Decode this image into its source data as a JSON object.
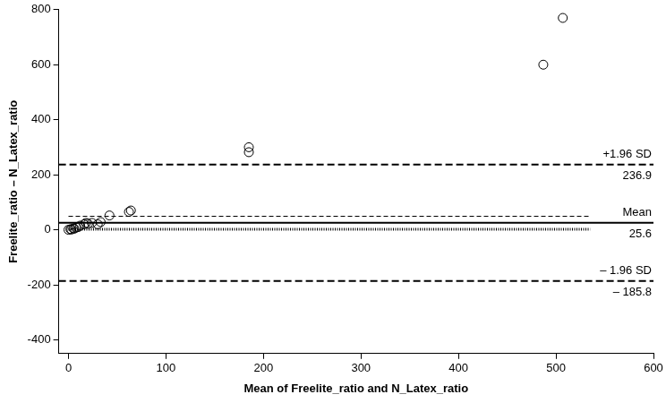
{
  "chart_data": {
    "type": "scatter",
    "x_label": "Mean of Freelite_ratio and N_Latex_ratio",
    "y_label": "Freelite_ratio – N_Latex_ratio",
    "x": [
      0,
      2,
      3,
      5,
      6,
      8,
      10,
      12,
      16,
      18,
      20,
      24,
      30,
      33,
      42,
      62,
      64,
      185,
      185,
      487,
      507
    ],
    "values": [
      0,
      2,
      1,
      5,
      4,
      8,
      10,
      15,
      20,
      25,
      22,
      25,
      20,
      28,
      52,
      65,
      70,
      300,
      282,
      600,
      770
    ],
    "color": "#000000",
    "marker": "open_circle",
    "xlim": [
      -10,
      600
    ],
    "xticks": [
      0,
      100,
      200,
      300,
      400,
      500,
      600
    ],
    "ylim": [
      -450,
      800
    ],
    "yticks": [
      -400,
      -200,
      0,
      200,
      400,
      600,
      800
    ],
    "grid": false,
    "lines": [
      {
        "y": 236.9,
        "label": "+1.96 SD",
        "value_label": "236.9",
        "line_style": "dashed"
      },
      {
        "y": 25.6,
        "label": "Mean",
        "value_label": "25.6",
        "line_style": "solid"
      },
      {
        "y": -185.8,
        "label": "– 1.96 SD",
        "value_label": "– 185.8",
        "line_style": "dashed"
      },
      {
        "y": 49,
        "x": [
          0,
          535
        ],
        "line_style": "dashed"
      },
      {
        "y": 2,
        "x": [
          0,
          535
        ],
        "line_style": "dotted"
      }
    ]
  }
}
